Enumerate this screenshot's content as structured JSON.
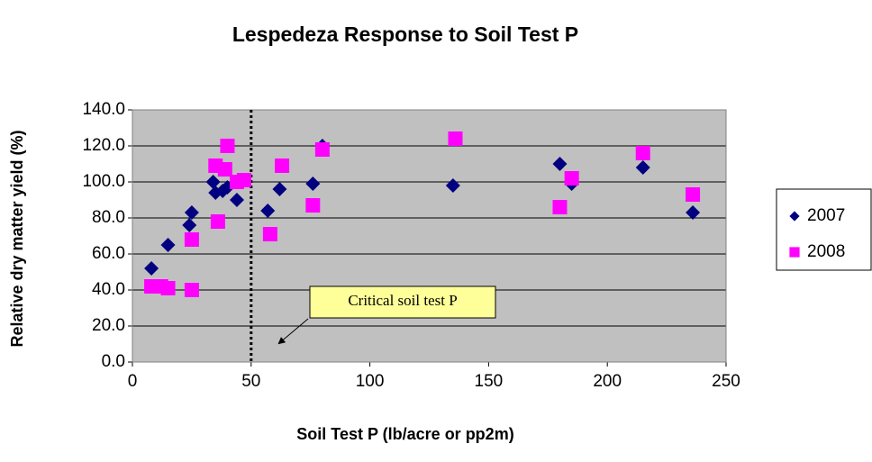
{
  "chart_data": {
    "type": "scatter",
    "title": "Lespedeza Response to Soil Test P",
    "x_label": "Soil Test P (lb/acre or pp2m)",
    "y_label": "Relative  dry matter yield  (%)",
    "annotation": "Critical soil test P",
    "critical_x": 50,
    "xlim": [
      0,
      250
    ],
    "ylim": [
      0,
      140
    ],
    "xticks": [
      0,
      50,
      100,
      150,
      200,
      250
    ],
    "yticks": [
      {
        "value": 0,
        "label": "0.0"
      },
      {
        "value": 20,
        "label": "20.0"
      },
      {
        "value": 40,
        "label": "40.0"
      },
      {
        "value": 60,
        "label": "60.0"
      },
      {
        "value": 80,
        "label": "80.0"
      },
      {
        "value": 100,
        "label": "100.0"
      },
      {
        "value": 120,
        "label": "120.0"
      },
      {
        "value": 140,
        "label": "140.0"
      }
    ],
    "grid": true,
    "legend": "right",
    "series": [
      {
        "name": "2007",
        "color": "#000080",
        "marker": "diamond",
        "x": [
          8,
          15,
          24,
          25,
          34,
          35,
          38,
          40,
          44,
          57,
          62,
          76,
          80,
          135,
          180,
          185,
          215,
          236
        ],
        "values": [
          52,
          65,
          76,
          83,
          100,
          94,
          95,
          97,
          90,
          84,
          96,
          99,
          120,
          98,
          110,
          99,
          108,
          83
        ]
      },
      {
        "name": "2008",
        "color": "#ff00ff",
        "marker": "square",
        "x": [
          8,
          12,
          15,
          25,
          25,
          35,
          36,
          39,
          40,
          44,
          47,
          58,
          63,
          76,
          80,
          136,
          180,
          185,
          215,
          236
        ],
        "values": [
          42,
          42,
          41,
          40,
          68,
          109,
          78,
          107,
          120,
          100,
          101,
          71,
          109,
          87,
          118,
          124,
          86,
          102,
          116,
          93
        ]
      }
    ]
  }
}
